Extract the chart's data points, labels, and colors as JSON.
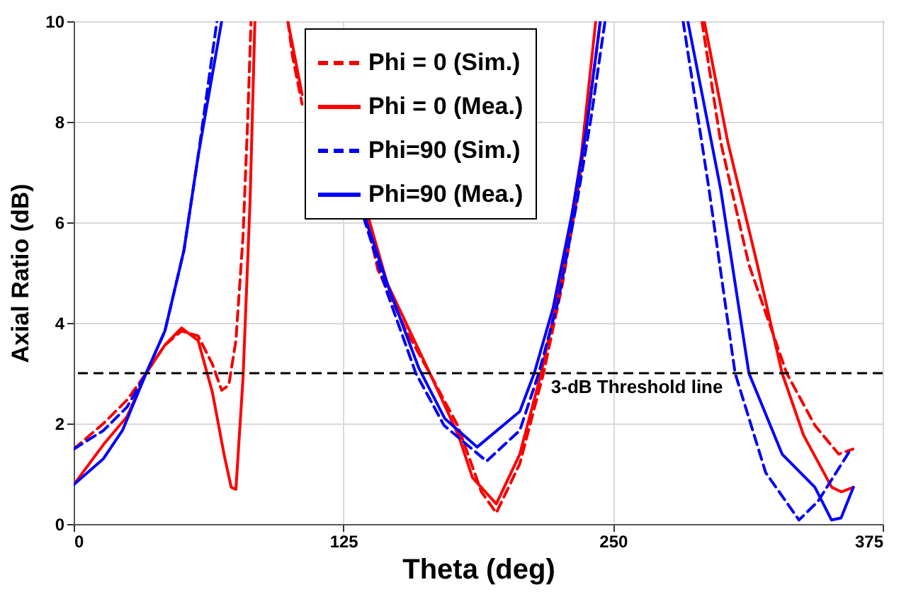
{
  "chart_data": {
    "type": "line",
    "xlabel": "Theta (deg)",
    "ylabel": "Axial Ratio (dB)",
    "xlim": [
      0,
      375
    ],
    "xticks": [
      0,
      125,
      250,
      375
    ],
    "ylim": [
      0,
      10
    ],
    "yticks": [
      0,
      2,
      4,
      6,
      8,
      10
    ],
    "grid": true,
    "legend": "top",
    "series": [
      {
        "name": "Phi = 0 (Sim.)",
        "color": "#f20000",
        "line_style": "dashed",
        "x": [
          0,
          13.8,
          24.8,
          33.6,
          42.3,
          50,
          57.7,
          64.3,
          68.6,
          71.9,
          75.2,
          78.5,
          80.7,
          82.2,
          90,
          99.3,
          101.5,
          105.9,
          114.7,
          135.5,
          141,
          154.2,
          165,
          178,
          189,
          195.9,
          206.8,
          217.8,
          226.6,
          233.2,
          239.8,
          244.1,
          270,
          291.2,
          299.9,
          313,
          330.5,
          343.6,
          354.6,
          361.2
        ],
        "values": [
          1.49,
          2.0,
          2.47,
          3.0,
          3.56,
          3.84,
          3.74,
          3.18,
          2.66,
          2.76,
          3.65,
          5.72,
          8.07,
          10,
          null,
          10,
          9.29,
          8.35,
          null,
          6.1,
          5.06,
          3.84,
          3.0,
          1.96,
          0.64,
          0.22,
          1.2,
          3.0,
          4.78,
          6.47,
          8.54,
          10,
          null,
          10,
          7.6,
          5.16,
          3.0,
          1.96,
          1.39,
          1.49
        ]
      },
      {
        "name": "Phi = 0 (Mea.)",
        "color": "#ff0000",
        "line_style": "solid",
        "x": [
          0,
          13.8,
          24.8,
          33.6,
          42.3,
          50,
          57.7,
          64.3,
          69.7,
          73,
          75.2,
          78.5,
          81.8,
          84,
          90,
          99.3,
          105.9,
          116.9,
          136.6,
          145.4,
          165.1,
          178.3,
          184.9,
          195.9,
          206.8,
          216.7,
          226.6,
          235.3,
          242,
          270,
          292.3,
          303.2,
          316.4,
          328.4,
          338.3,
          351.4,
          355.8,
          361.4
        ],
        "values": [
          0.78,
          1.58,
          2.14,
          3.0,
          3.56,
          3.9,
          3.65,
          2.62,
          1.39,
          0.73,
          0.69,
          2.9,
          6.47,
          10,
          null,
          10,
          8.54,
          null,
          6.1,
          4.78,
          3.0,
          1.77,
          0.92,
          0.4,
          1.39,
          3.0,
          4.97,
          7.32,
          10,
          null,
          10,
          7.6,
          5.25,
          3.0,
          1.77,
          0.73,
          0.64,
          0.73
        ]
      },
      {
        "name": "Phi=90 (Sim.)",
        "color": "#0000f2",
        "line_style": "dashed",
        "x": [
          0,
          13.8,
          24.8,
          33.6,
          42.3,
          51.1,
          57.7,
          66.4,
          90,
          134.4,
          145.4,
          158.6,
          171.7,
          191.4,
          206.8,
          215.6,
          224.4,
          233.2,
          239.8,
          246.3,
          265,
          282.5,
          294.5,
          306.6,
          320.8,
          336.2,
          345,
          360.3
        ],
        "values": [
          1.49,
          1.86,
          2.33,
          3.0,
          3.84,
          5.44,
          7.32,
          10,
          null,
          6.1,
          4.59,
          3.0,
          1.96,
          1.25,
          1.86,
          3.0,
          4.4,
          6.38,
          8.07,
          10,
          null,
          10,
          6.66,
          3.0,
          1.02,
          0.08,
          0.45,
          1.49
        ]
      },
      {
        "name": "Phi=90 (Mea.)",
        "color": "#0000ff",
        "line_style": "solid",
        "x": [
          0,
          13.8,
          22.6,
          33.6,
          42.3,
          51.1,
          57.7,
          68.6,
          90,
          135,
          146,
          160,
          172,
          187,
          206.8,
          213.5,
          222.3,
          231.1,
          237.7,
          244.1,
          265,
          284.7,
          299.9,
          313,
          328.4,
          343.6,
          351.3,
          355.7,
          361.4
        ],
        "values": [
          0.78,
          1.3,
          1.86,
          3.0,
          3.84,
          5.44,
          7.32,
          10,
          null,
          6.1,
          4.7,
          3.1,
          2.1,
          1.53,
          2.24,
          3.0,
          4.31,
          6.19,
          7.88,
          10,
          null,
          10,
          6.66,
          3.0,
          1.39,
          0.73,
          0.08,
          0.12,
          0.73
        ]
      }
    ],
    "ref_lines": [
      {
        "axis": "y",
        "value": 3,
        "label": "3-dB Threshold line",
        "color": "#000000",
        "line_style": "dashed"
      }
    ]
  }
}
